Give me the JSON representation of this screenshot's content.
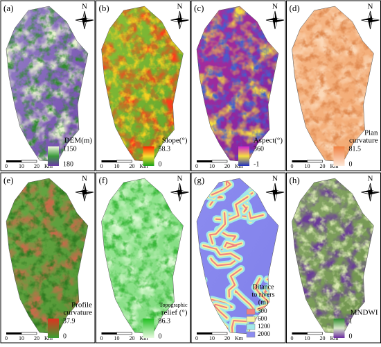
{
  "panels": [
    {
      "label": "(a)",
      "north": "N",
      "legend": {
        "title_lines": [
          "DEM(m)"
        ],
        "max": "1150",
        "min": "180"
      },
      "scale": [
        "0",
        "10",
        "20",
        "Km"
      ]
    },
    {
      "label": "(b)",
      "north": "N",
      "legend": {
        "title_lines": [
          "Slope(°)"
        ],
        "max": "58.3",
        "min": "0"
      },
      "scale": [
        "0",
        "10",
        "20",
        "Km"
      ]
    },
    {
      "label": "(c)",
      "north": "N",
      "legend": {
        "title_lines": [
          "Aspect(°)"
        ],
        "max": "360",
        "min": "-1"
      },
      "scale": [
        "0",
        "10",
        "20",
        "Km"
      ]
    },
    {
      "label": "(d)",
      "north": "N",
      "legend": {
        "title_lines": [
          "Plan",
          "curvature"
        ],
        "max": "81.5",
        "min": "0"
      },
      "scale": [
        "0",
        "10",
        "20",
        "Km"
      ]
    },
    {
      "label": "(e)",
      "north": "N",
      "legend": {
        "title_lines": [
          "Profile",
          "curvature"
        ],
        "max": "37.9",
        "min": "0"
      },
      "scale": [
        "0",
        "10",
        "20",
        "Km"
      ]
    },
    {
      "label": "(f)",
      "north": "N",
      "legend": {
        "title_lines": [
          "Topographic",
          "relief (°)"
        ],
        "max": "86.3",
        "min": "0"
      },
      "scale": [
        "0",
        "10",
        "20",
        "Km"
      ]
    },
    {
      "label": "(g)",
      "north": "N",
      "legend": {
        "title_lines": [
          "Ditance",
          "to rivers",
          "(m)"
        ],
        "classes": [
          "300",
          "600",
          "1200",
          "2000"
        ]
      },
      "scale": [
        "0",
        "10",
        "20",
        "Km"
      ]
    },
    {
      "label": "(h)",
      "north": "N",
      "legend": {
        "title_lines": [
          "MNDWI"
        ],
        "max": "1",
        "min": "0"
      },
      "scale": [
        "0",
        "10",
        "20",
        "Km"
      ]
    }
  ]
}
